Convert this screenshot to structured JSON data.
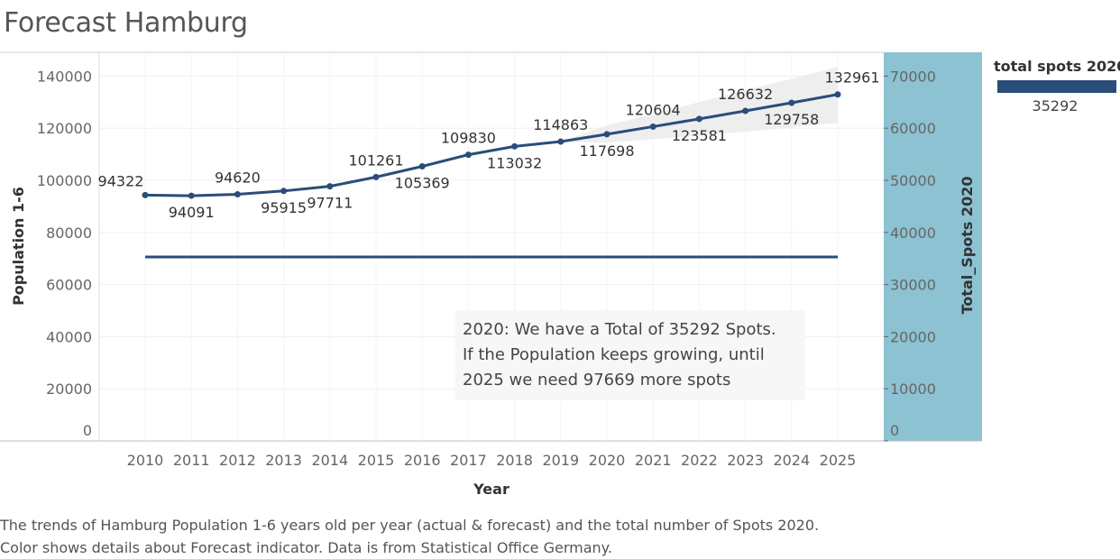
{
  "title": "Forecast Hamburg",
  "chart_data": {
    "type": "line",
    "xlabel": "Year",
    "ylabel": "Population 1-6",
    "y2label": "Total_Spots 2020",
    "ylim": [
      0,
      150000
    ],
    "y2lim": [
      0,
      75000
    ],
    "yticks": [
      0,
      20000,
      40000,
      60000,
      80000,
      100000,
      120000,
      140000
    ],
    "y2ticks": [
      0,
      10000,
      20000,
      30000,
      40000,
      50000,
      60000,
      70000
    ],
    "x": [
      2010,
      2011,
      2012,
      2013,
      2014,
      2015,
      2016,
      2017,
      2018,
      2019,
      2020,
      2021,
      2022,
      2023,
      2024,
      2025
    ],
    "series": [
      {
        "name": "Population 1-6",
        "axis": "left",
        "color": "#2a4d7a",
        "values": [
          94322,
          94091,
          94620,
          95915,
          97711,
          101261,
          105369,
          109830,
          113032,
          114863,
          117698,
          120604,
          123581,
          126632,
          129758,
          132961
        ],
        "labels": [
          "94322",
          "94091",
          "94620",
          "95915",
          "97711",
          "101261",
          "105369",
          "109830",
          "113032",
          "114863",
          "117698",
          "120604",
          "123581",
          "126632",
          "129758",
          "132961"
        ],
        "label_position": [
          "left",
          "below",
          "above",
          "below",
          "below",
          "above",
          "below",
          "above",
          "below",
          "above",
          "below",
          "above",
          "below",
          "above",
          "below",
          "above"
        ]
      },
      {
        "name": "Total_Spots 2020",
        "axis": "right",
        "color": "#2a4d7a",
        "values": [
          35292,
          35292,
          35292,
          35292,
          35292,
          35292,
          35292,
          35292,
          35292,
          35292,
          35292,
          35292,
          35292,
          35292,
          35292,
          35292
        ]
      }
    ],
    "forecast_band": {
      "x": [
        2019,
        2020,
        2021,
        2022,
        2023,
        2024,
        2025
      ],
      "lower": [
        114863,
        114500,
        115800,
        117200,
        118700,
        120300,
        122000
      ],
      "upper": [
        114863,
        121000,
        125500,
        130000,
        134500,
        139000,
        143500
      ],
      "color": "#eeeeee"
    },
    "right_panel_color": "#8cc2d2"
  },
  "annotation": {
    "lines": [
      "2020: We have a Total of 35292 Spots.",
      "If the Population keeps growing, until",
      "2025 we need 97669 more spots"
    ]
  },
  "legend": {
    "title": "total spots 2020",
    "value": "35292",
    "color": "#2a4d7a"
  },
  "caption": {
    "line1": "The trends of Hamburg Population 1-6 years old per year (actual & forecast)  and the total number of Spots 2020.",
    "line2": "Color shows details about Forecast indicator. Data is from Statistical Office Germany."
  }
}
